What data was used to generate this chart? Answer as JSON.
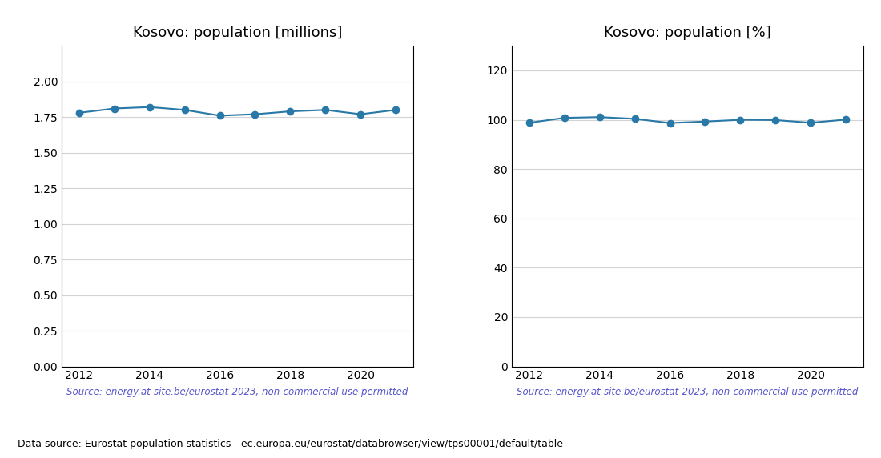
{
  "years": [
    2012,
    2013,
    2014,
    2015,
    2016,
    2017,
    2018,
    2019,
    2020,
    2021
  ],
  "pop_millions": [
    1.78,
    1.81,
    1.82,
    1.8,
    1.76,
    1.77,
    1.79,
    1.8,
    1.77,
    1.8
  ],
  "pop_percent": [
    98.8,
    100.8,
    101.1,
    100.4,
    98.7,
    99.3,
    100.0,
    99.9,
    98.8,
    100.1
  ],
  "title_millions": "Kosovo: population [millions]",
  "title_percent": "Kosovo: population [%]",
  "source_text": "Source: energy.at-site.be/eurostat-2023, non-commercial use permitted",
  "footer_text": "Data source: Eurostat population statistics - ec.europa.eu/eurostat/databrowser/view/tps00001/default/table",
  "line_color": "#2878a8",
  "source_color": "#5555cc",
  "footer_color": "#000000",
  "ylim_millions": [
    0.0,
    2.25
  ],
  "yticks_millions": [
    0.0,
    0.25,
    0.5,
    0.75,
    1.0,
    1.25,
    1.5,
    1.75,
    2.0
  ],
  "ylim_percent": [
    0,
    130
  ],
  "yticks_percent": [
    0,
    20,
    40,
    60,
    80,
    100,
    120
  ],
  "xlim": [
    2011.5,
    2021.5
  ],
  "xticks": [
    2012,
    2014,
    2016,
    2018,
    2020
  ]
}
